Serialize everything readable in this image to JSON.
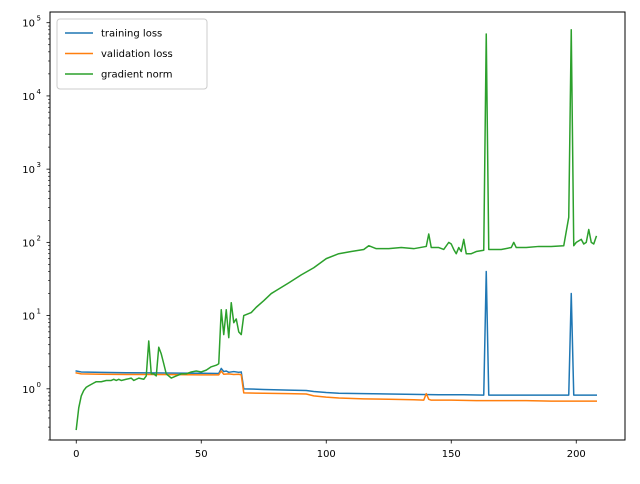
{
  "chart_data": {
    "type": "line",
    "title": "",
    "xlabel": "",
    "ylabel": "",
    "xlim": [
      -10.5,
      219.5
    ],
    "ylim": [
      0.2,
      140000
    ],
    "yscale": "log",
    "grid": false,
    "legend_position": "top-left",
    "x_ticks": [
      0,
      50,
      100,
      150,
      200
    ],
    "x_tick_labels": [
      "0",
      "50",
      "100",
      "150",
      "200"
    ],
    "y_ticks": [
      1,
      10,
      100,
      1000,
      10000,
      100000
    ],
    "y_tick_labels": [
      {
        "base": "10",
        "exp": "0"
      },
      {
        "base": "10",
        "exp": "1"
      },
      {
        "base": "10",
        "exp": "2"
      },
      {
        "base": "10",
        "exp": "3"
      },
      {
        "base": "10",
        "exp": "4"
      },
      {
        "base": "10",
        "exp": "5"
      }
    ],
    "series": [
      {
        "name": "training loss",
        "color": "#1f77b4",
        "points": [
          [
            0,
            1.75
          ],
          [
            2,
            1.7
          ],
          [
            10,
            1.68
          ],
          [
            20,
            1.66
          ],
          [
            30,
            1.65
          ],
          [
            40,
            1.64
          ],
          [
            50,
            1.63
          ],
          [
            57,
            1.62
          ],
          [
            58,
            1.9
          ],
          [
            59,
            1.72
          ],
          [
            60,
            1.75
          ],
          [
            61,
            1.68
          ],
          [
            63,
            1.72
          ],
          [
            65,
            1.68
          ],
          [
            66,
            1.7
          ],
          [
            67,
            1.0
          ],
          [
            75,
            0.98
          ],
          [
            85,
            0.96
          ],
          [
            92,
            0.95
          ],
          [
            95,
            0.92
          ],
          [
            100,
            0.89
          ],
          [
            105,
            0.87
          ],
          [
            115,
            0.86
          ],
          [
            125,
            0.85
          ],
          [
            135,
            0.84
          ],
          [
            145,
            0.83
          ],
          [
            155,
            0.83
          ],
          [
            163,
            0.82
          ],
          [
            164,
            40
          ],
          [
            165,
            0.82
          ],
          [
            175,
            0.82
          ],
          [
            185,
            0.82
          ],
          [
            197,
            0.82
          ],
          [
            198,
            20
          ],
          [
            199,
            0.82
          ],
          [
            208,
            0.82
          ]
        ]
      },
      {
        "name": "validation loss",
        "color": "#ff7f0e",
        "points": [
          [
            0,
            1.65
          ],
          [
            2,
            1.6
          ],
          [
            10,
            1.58
          ],
          [
            20,
            1.57
          ],
          [
            30,
            1.57
          ],
          [
            40,
            1.56
          ],
          [
            50,
            1.55
          ],
          [
            57,
            1.55
          ],
          [
            58,
            1.75
          ],
          [
            59,
            1.58
          ],
          [
            61,
            1.6
          ],
          [
            63,
            1.57
          ],
          [
            65,
            1.58
          ],
          [
            66,
            1.55
          ],
          [
            67,
            0.88
          ],
          [
            75,
            0.87
          ],
          [
            85,
            0.86
          ],
          [
            92,
            0.85
          ],
          [
            95,
            0.8
          ],
          [
            100,
            0.77
          ],
          [
            105,
            0.75
          ],
          [
            115,
            0.73
          ],
          [
            125,
            0.72
          ],
          [
            135,
            0.71
          ],
          [
            139,
            0.7
          ],
          [
            140,
            0.86
          ],
          [
            141,
            0.72
          ],
          [
            142,
            0.7
          ],
          [
            150,
            0.7
          ],
          [
            160,
            0.69
          ],
          [
            170,
            0.69
          ],
          [
            180,
            0.69
          ],
          [
            190,
            0.68
          ],
          [
            200,
            0.68
          ],
          [
            208,
            0.68
          ]
        ]
      },
      {
        "name": "gradient norm",
        "color": "#2ca02c",
        "points": [
          [
            0,
            0.28
          ],
          [
            1,
            0.55
          ],
          [
            2,
            0.8
          ],
          [
            3,
            0.95
          ],
          [
            4,
            1.05
          ],
          [
            5,
            1.1
          ],
          [
            6,
            1.15
          ],
          [
            7,
            1.2
          ],
          [
            8,
            1.25
          ],
          [
            10,
            1.25
          ],
          [
            12,
            1.3
          ],
          [
            14,
            1.3
          ],
          [
            15,
            1.35
          ],
          [
            16,
            1.3
          ],
          [
            17,
            1.35
          ],
          [
            18,
            1.3
          ],
          [
            20,
            1.35
          ],
          [
            22,
            1.4
          ],
          [
            23,
            1.3
          ],
          [
            25,
            1.4
          ],
          [
            27,
            1.35
          ],
          [
            28,
            1.5
          ],
          [
            29,
            4.5
          ],
          [
            30,
            1.6
          ],
          [
            31,
            1.6
          ],
          [
            32,
            1.5
          ],
          [
            33,
            3.7
          ],
          [
            34,
            3.0
          ],
          [
            35,
            2.2
          ],
          [
            36,
            1.6
          ],
          [
            37,
            1.5
          ],
          [
            38,
            1.4
          ],
          [
            40,
            1.5
          ],
          [
            42,
            1.6
          ],
          [
            44,
            1.6
          ],
          [
            46,
            1.7
          ],
          [
            48,
            1.75
          ],
          [
            50,
            1.7
          ],
          [
            52,
            1.8
          ],
          [
            54,
            2.0
          ],
          [
            56,
            2.1
          ],
          [
            57,
            2.2
          ],
          [
            58,
            12.0
          ],
          [
            59,
            5.5
          ],
          [
            60,
            12.0
          ],
          [
            61,
            5.0
          ],
          [
            62,
            15.0
          ],
          [
            63,
            8.0
          ],
          [
            64,
            9.0
          ],
          [
            65,
            6.0
          ],
          [
            66,
            5.5
          ],
          [
            67,
            10.0
          ],
          [
            70,
            11.0
          ],
          [
            72,
            13.0
          ],
          [
            75,
            16.0
          ],
          [
            78,
            20.0
          ],
          [
            80,
            22.0
          ],
          [
            85,
            28.0
          ],
          [
            90,
            36.0
          ],
          [
            95,
            45.0
          ],
          [
            100,
            60.0
          ],
          [
            105,
            70.0
          ],
          [
            110,
            75.0
          ],
          [
            115,
            80.0
          ],
          [
            117,
            90.0
          ],
          [
            120,
            82.0
          ],
          [
            125,
            82.0
          ],
          [
            130,
            85.0
          ],
          [
            135,
            82.0
          ],
          [
            140,
            88.0
          ],
          [
            141,
            130.0
          ],
          [
            142,
            85.0
          ],
          [
            145,
            85.0
          ],
          [
            147,
            80.0
          ],
          [
            149,
            100.0
          ],
          [
            150,
            95.0
          ],
          [
            151,
            80.0
          ],
          [
            152,
            70.0
          ],
          [
            153,
            85.0
          ],
          [
            154,
            75.0
          ],
          [
            155,
            110.0
          ],
          [
            156,
            70.0
          ],
          [
            158,
            70.0
          ],
          [
            160,
            75.0
          ],
          [
            163,
            78.0
          ],
          [
            164,
            70000.0
          ],
          [
            165,
            80.0
          ],
          [
            170,
            80.0
          ],
          [
            174,
            85.0
          ],
          [
            175,
            100.0
          ],
          [
            176,
            85.0
          ],
          [
            180,
            85.0
          ],
          [
            185,
            88.0
          ],
          [
            190,
            88.0
          ],
          [
            195,
            90.0
          ],
          [
            197,
            220.0
          ],
          [
            198,
            80000.0
          ],
          [
            199,
            90.0
          ],
          [
            200,
            100.0
          ],
          [
            202,
            110.0
          ],
          [
            203,
            95.0
          ],
          [
            204,
            100.0
          ],
          [
            205,
            150.0
          ],
          [
            206,
            100.0
          ],
          [
            207,
            95.0
          ],
          [
            208,
            120.0
          ]
        ]
      }
    ]
  }
}
